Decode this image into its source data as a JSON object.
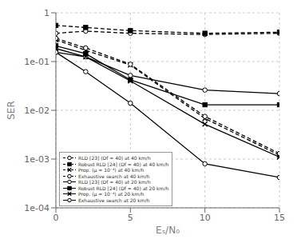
{
  "chart_data": {
    "type": "line",
    "xlabel": "Eₛ/N₀",
    "ylabel": "SER",
    "x": [
      0,
      2,
      5,
      10,
      15
    ],
    "xlim": [
      0,
      15
    ],
    "xticks": [
      0,
      5,
      10,
      15
    ],
    "ylim": [
      0.0001,
      1
    ],
    "yticks": [
      {
        "value": 0.0001,
        "label": "1e-04"
      },
      {
        "value": 0.001,
        "label": "1e-03"
      },
      {
        "value": 0.01,
        "label": "1e-02"
      },
      {
        "value": 0.1,
        "label": "1e-01"
      },
      1
    ],
    "log": "y",
    "grid": true,
    "legend": "lower left",
    "series": [
      {
        "name": "RLD [23] (Df = 40) at 40 km/h",
        "color": "black",
        "marker": "circle",
        "line_style": "dashed",
        "values": [
          0.38,
          0.42,
          0.38,
          0.36,
          0.38
        ]
      },
      {
        "name": "Robust RLD [24] (Df = 40) at 40 km/h",
        "color": "black",
        "marker": "square",
        "line_style": "dashed",
        "values": [
          0.55,
          0.5,
          0.43,
          0.38,
          0.4
        ]
      },
      {
        "name": "Prop. (μ = 10⁻⁴) at 40 km/h",
        "color": "black",
        "marker": "x",
        "line_style": "dashed",
        "values": [
          0.28,
          0.17,
          0.085,
          0.0068,
          0.0012
        ]
      },
      {
        "name": "Exhaustive search at 40 km/h",
        "color": "black",
        "marker": "circle",
        "line_style": "dashed",
        "values": [
          0.3,
          0.19,
          0.088,
          0.0075,
          0.0013
        ]
      },
      {
        "name": "RLD [23] (Df = 40) at 20 km/h",
        "color": "black",
        "marker": "circle",
        "line_style": "solid",
        "values": [
          0.155,
          0.125,
          0.052,
          0.026,
          0.022
        ]
      },
      {
        "name": "Robust RLD [24] (Df = 40) at 20 km/h",
        "color": "black",
        "marker": "square",
        "line_style": "solid",
        "values": [
          0.21,
          0.145,
          0.042,
          0.013,
          0.013
        ]
      },
      {
        "name": "Prop. (μ = 10⁻⁴) at 20 km/h",
        "color": "black",
        "marker": "x",
        "line_style": "solid",
        "values": [
          0.185,
          0.125,
          0.04,
          0.0052,
          0.0011
        ]
      },
      {
        "name": "Exhaustive search at 20 km/h",
        "color": "black",
        "marker": "circle",
        "line_style": "solid",
        "values": [
          0.155,
          0.062,
          0.014,
          0.0008,
          0.00042
        ]
      }
    ]
  }
}
